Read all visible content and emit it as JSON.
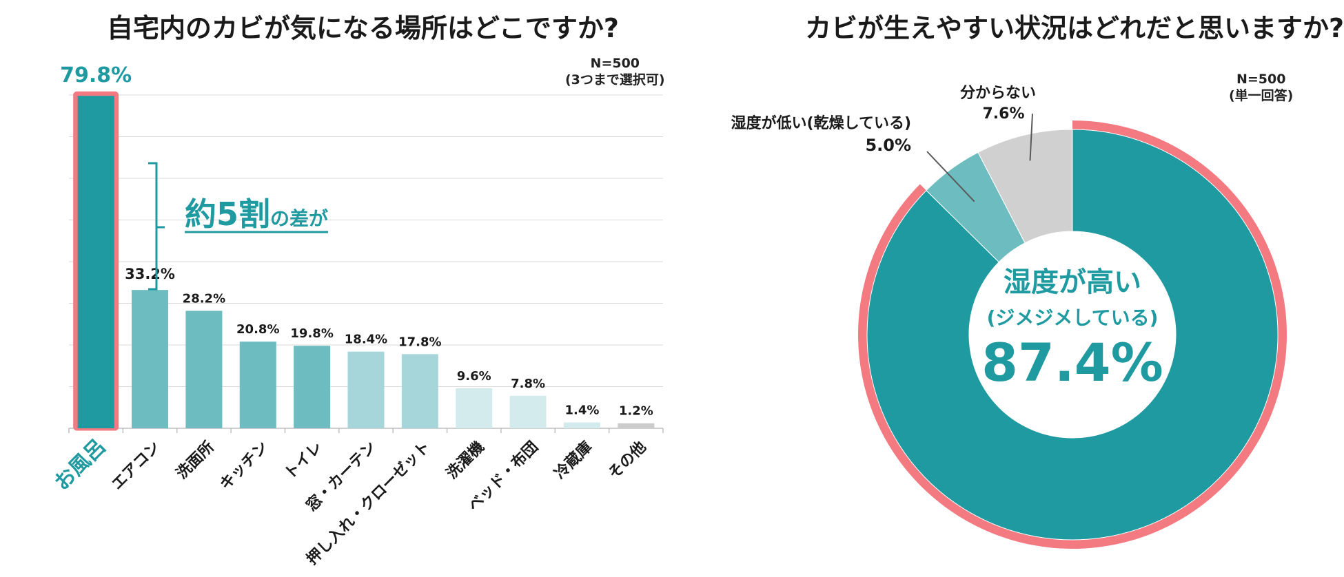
{
  "chart_data": [
    {
      "type": "bar",
      "title": "自宅内のカビが気になる場所はどこですか?",
      "note": {
        "n": "N=500",
        "sub": "(3つまで選択可)"
      },
      "categories": [
        "お風呂",
        "エアコン",
        "洗面所",
        "キッチン",
        "トイレ",
        "窓・カーテン",
        "押し入れ・クローゼット",
        "洗濯機",
        "ベッド・布団",
        "冷蔵庫",
        "その他"
      ],
      "values": [
        79.8,
        33.2,
        28.2,
        20.8,
        19.8,
        18.4,
        17.8,
        9.6,
        7.8,
        1.4,
        1.2
      ],
      "value_labels": [
        "79.8%",
        "33.2%",
        "28.2%",
        "20.8%",
        "19.8%",
        "18.4%",
        "17.8%",
        "9.6%",
        "7.8%",
        "1.4%",
        "1.2%"
      ],
      "colors": [
        "#1e9aa0",
        "#6cbcc0",
        "#6cbcc0",
        "#6cbcc0",
        "#6cbcc0",
        "#a6d6d9",
        "#a6d6d9",
        "#d4ebed",
        "#d4ebed",
        "#d4ebed",
        "#cccccc"
      ],
      "highlight_border_color": "#f27a80",
      "ylim": [
        0,
        80
      ],
      "grid": true,
      "annotation": {
        "big": "約5割",
        "small": "の差が"
      }
    },
    {
      "type": "pie",
      "title": "カビが生えやすい状況はどれだと思いますか?",
      "note": {
        "n": "N=500",
        "sub": "(単一回答)"
      },
      "slices": [
        {
          "label": "湿度が高い",
          "label2": "(ジメジメしている)",
          "value": 87.4,
          "value_label": "87.4%",
          "color": "#1e9aa0"
        },
        {
          "label": "湿度が低い(乾燥している)",
          "value": 5.0,
          "value_label": "5.0%",
          "color": "#6cbcc0"
        },
        {
          "label": "分からない",
          "value": 7.6,
          "value_label": "7.6%",
          "color": "#d0d0d0"
        }
      ],
      "highlight_border_color": "#f27a80"
    }
  ]
}
